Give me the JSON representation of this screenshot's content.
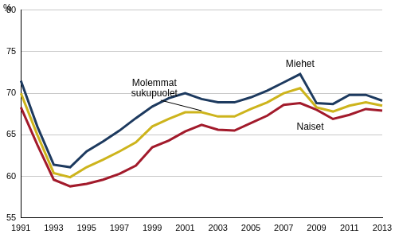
{
  "chart_data": {
    "type": "line",
    "ylabel": "%",
    "categories": [
      "1991",
      null,
      "1993",
      null,
      "1995",
      null,
      "1997",
      null,
      "1999",
      null,
      "2001",
      null,
      "2003",
      null,
      "2005",
      null,
      "2007",
      null,
      "2009",
      null,
      "2011",
      null,
      "2013"
    ],
    "series": [
      {
        "name": "Miehet",
        "color": "#1d3a5f",
        "values": [
          71.5,
          66.0,
          61.4,
          61.1,
          63.0,
          64.2,
          65.5,
          67.0,
          68.4,
          69.4,
          70.0,
          69.3,
          68.9,
          68.9,
          69.5,
          70.3,
          71.3,
          72.3,
          68.8,
          68.7,
          69.8,
          69.8,
          69.1
        ]
      },
      {
        "name": "Molemmat sukupuolet",
        "color": "#cdb41c",
        "values": [
          70.0,
          65.0,
          60.4,
          59.9,
          61.1,
          62.0,
          63.0,
          64.1,
          66.0,
          66.9,
          67.7,
          67.7,
          67.2,
          67.2,
          68.1,
          68.9,
          70.0,
          70.6,
          68.3,
          67.8,
          68.5,
          68.9,
          68.5
        ]
      },
      {
        "name": "Naiset",
        "color": "#a21a2b",
        "values": [
          68.3,
          63.8,
          59.6,
          58.8,
          59.1,
          59.6,
          60.3,
          61.3,
          63.5,
          64.3,
          65.4,
          66.2,
          65.6,
          65.5,
          66.4,
          67.3,
          68.6,
          68.8,
          68.0,
          66.9,
          67.4,
          68.1,
          67.9
        ]
      }
    ],
    "ylim": [
      55,
      80
    ],
    "yticks": [
      55,
      60,
      65,
      70,
      75,
      80
    ],
    "grid": true
  }
}
